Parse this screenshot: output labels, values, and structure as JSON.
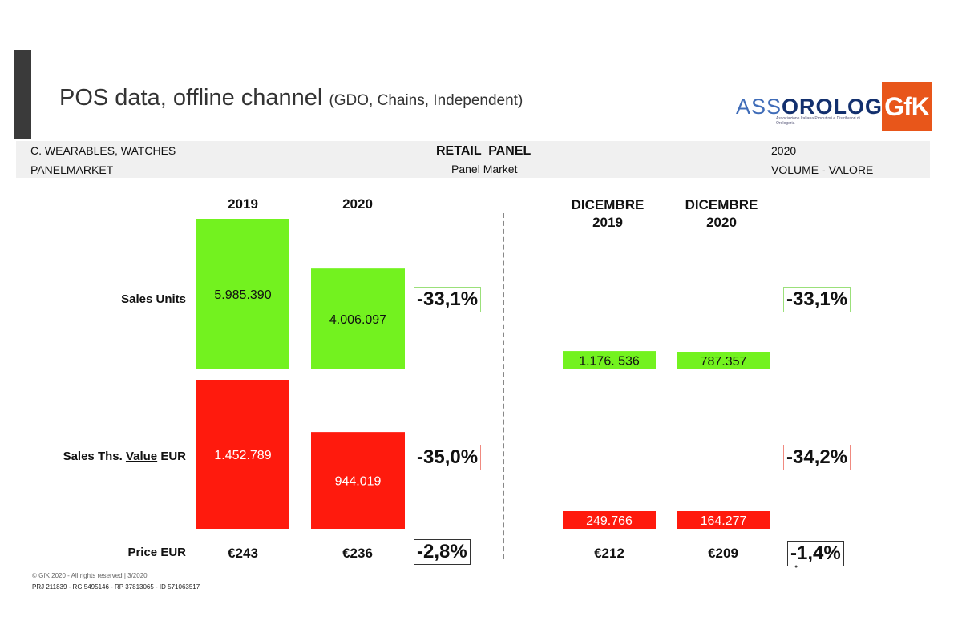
{
  "header": {
    "title": "POS data, offline channel",
    "subtitle": "(GDO, Chains, Independent)",
    "logo_assorologi": {
      "light": "ASS",
      "bold": "OROLOGI",
      "tagline": "Associazione Italiana Produttori e Distributori di Orologeria"
    },
    "logo_gfk": "GfK"
  },
  "band": {
    "left_line1": "C. WEARABLES, WATCHES",
    "left_line2": "PANELMARKET",
    "center_line1": "RETAIL  PANEL",
    "center_line2": "Panel Market",
    "right_line1": "2020",
    "right_line2": "VOLUME - VALORE"
  },
  "rows": {
    "units": "Sales Units",
    "value_prefix": "Sales Ths. ",
    "value_underlined": "Value",
    "value_suffix": " EUR",
    "price": "Price EUR"
  },
  "columns": {
    "y2019": "2019",
    "y2020": "2020",
    "dec2019_l1": "DICEMBRE",
    "dec2019_l2": "2019",
    "dec2020_l1": "DICEMBRE",
    "dec2020_l2": "2020"
  },
  "chart_data": {
    "type": "bar",
    "title": "POS data, offline channel",
    "categories": [
      "2019",
      "2020",
      "DICEMBRE 2019",
      "DICEMBRE 2020"
    ],
    "series": [
      {
        "name": "Sales Units",
        "color": "#73f21f",
        "values": [
          5985390,
          4006097,
          1176536,
          787357
        ],
        "labels": [
          "5.985.390",
          "4.006.097",
          "1.176. 536",
          "787.357"
        ]
      },
      {
        "name": "Sales Ths. Value EUR",
        "color": "#ff1a0d",
        "values": [
          1452789,
          944019,
          249766,
          164277
        ],
        "labels": [
          "1.452.789",
          "944.019",
          "249.766",
          "164.277"
        ]
      }
    ],
    "price": [
      "€243",
      "€236",
      "€212",
      "€209"
    ],
    "changes": {
      "annual": {
        "units": "-33,1%",
        "value": "-35,0%",
        "price": "-2,8%"
      },
      "december": {
        "units": "-33,1%",
        "value": "-34,2%",
        "price": "-1,4%"
      }
    }
  },
  "colors": {
    "green": "#73f21f",
    "red": "#ff1a0d",
    "green_border": "#9be07a",
    "red_border": "#f08a80",
    "gfk_orange": "#e8561a"
  },
  "footer": {
    "line1": "© GfK 2020 - All rights reserved | 3/2020",
    "line2": "PRJ 211839 - RG 5495146 - RP 37813065 - ID 571063517"
  }
}
